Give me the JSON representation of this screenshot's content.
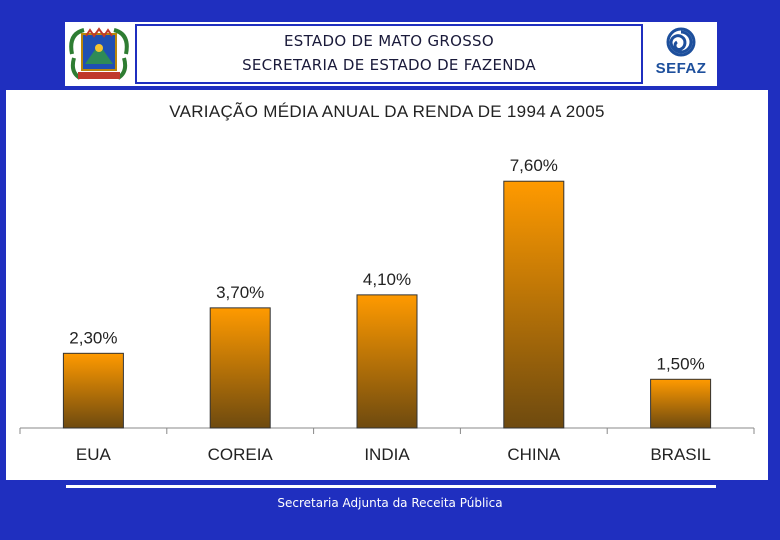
{
  "header": {
    "line1": "ESTADO DE MATO GROSSO",
    "line2": "SECRETARIA DE ESTADO DE FAZENDA",
    "logo_text": "SEFAZ"
  },
  "footer": {
    "text": "Secretaria Adjunta da Receita Pública"
  },
  "colors": {
    "background": "#1f2fbf",
    "bar_top": "#ff9a00",
    "bar_bottom": "#6e4a0f"
  },
  "chart_data": {
    "type": "bar",
    "title": "VARIAÇÃO MÉDIA ANUAL DA RENDA DE 1994 A 2005",
    "categories": [
      "EUA",
      "COREIA",
      "INDIA",
      "CHINA",
      "BRASIL"
    ],
    "values": [
      2.3,
      3.7,
      4.1,
      7.6,
      1.5
    ],
    "data_labels": [
      "2,30%",
      "3,70%",
      "4,10%",
      "7,60%",
      "1,50%"
    ],
    "xlabel": "",
    "ylabel": "",
    "ylim": [
      0,
      8.5
    ],
    "grid": false,
    "legend": "none"
  }
}
